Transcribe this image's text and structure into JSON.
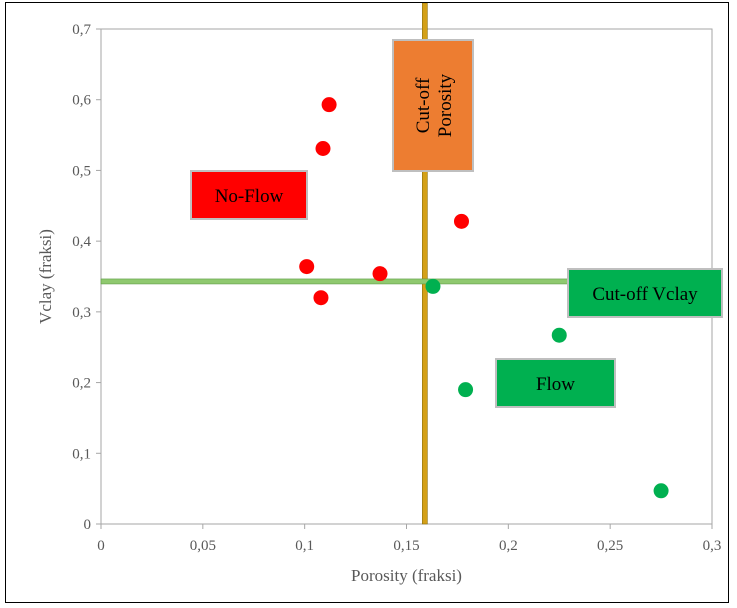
{
  "chart_data": {
    "type": "scatter",
    "title": "",
    "xlabel": "Porosity (fraksi)",
    "ylabel": "Vclay (fraksi)",
    "xlim": [
      0,
      0.3
    ],
    "ylim": [
      0,
      0.7
    ],
    "x_ticks": [
      "0",
      "0,05",
      "0,1",
      "0,15",
      "0,2",
      "0,25",
      "0,3"
    ],
    "y_ticks": [
      "0",
      "0,1",
      "0,2",
      "0,3",
      "0,4",
      "0,5",
      "0,6",
      "0,7"
    ],
    "grid": false,
    "legend": "none",
    "series": [
      {
        "color": "#ff0000",
        "points": [
          {
            "x": 0.112,
            "y": 0.593
          },
          {
            "x": 0.109,
            "y": 0.531
          },
          {
            "x": 0.177,
            "y": 0.428
          },
          {
            "x": 0.101,
            "y": 0.364
          },
          {
            "x": 0.137,
            "y": 0.354
          },
          {
            "x": 0.108,
            "y": 0.32
          }
        ]
      },
      {
        "color": "#00b050",
        "points": [
          {
            "x": 0.163,
            "y": 0.336
          },
          {
            "x": 0.225,
            "y": 0.267
          },
          {
            "x": 0.179,
            "y": 0.19
          },
          {
            "x": 0.275,
            "y": 0.047
          }
        ]
      }
    ],
    "cutoffs": {
      "porosity": {
        "value": 0.159,
        "color": "#d4a017"
      },
      "vclay": {
        "value": 0.343,
        "color": "#8fc96f"
      }
    },
    "annotations": [
      {
        "text": "No-Flow",
        "fill": "#ff0000"
      },
      {
        "text": "Cut-off Porosity",
        "lines": [
          "Cut-off",
          "Porosity"
        ],
        "fill": "#ed7d31"
      },
      {
        "text": "Cut-off Vclay",
        "fill": "#00b050"
      },
      {
        "text": "Flow",
        "fill": "#00b050"
      }
    ]
  }
}
